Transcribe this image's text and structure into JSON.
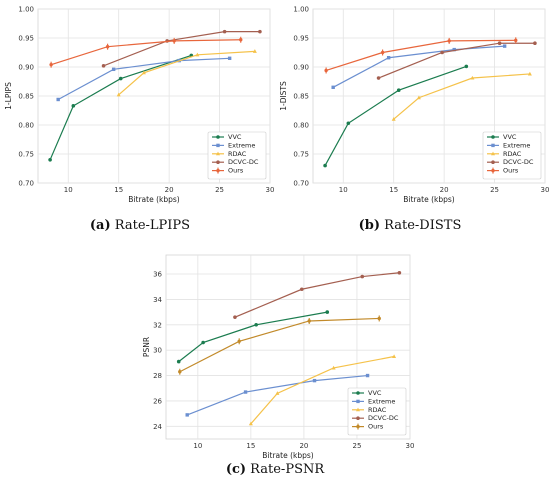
{
  "series_colors": {
    "VVC": "#1b7c4f",
    "Extreme": "#6b8fd0",
    "RDAC": "#f5c24a",
    "DCVC-DC": "#a45f50",
    "Ours": "#e8663c"
  },
  "ours_colors_psnr": "#c28a2a",
  "captions": {
    "lpips_letter": "(a)",
    "lpips_text": " Rate-LPIPS",
    "dists_letter": "(b)",
    "dists_text": " Rate-DISTS",
    "psnr_letter": "(c)",
    "psnr_text": " Rate-PSNR"
  },
  "chart_data": [
    {
      "id": "lpips",
      "type": "line",
      "xlabel": "Bitrate (kbps)",
      "ylabel": "1-LPIPS",
      "xlim": [
        7,
        30
      ],
      "ylim": [
        0.7,
        1.0
      ],
      "xticks": [
        10,
        15,
        20,
        25,
        30
      ],
      "yticks": [
        0.7,
        0.75,
        0.8,
        0.85,
        0.9,
        0.95,
        1.0
      ],
      "ytick_labels": [
        "0.70",
        "0.75",
        "0.80",
        "0.85",
        "0.90",
        "0.95",
        "1.00"
      ],
      "grid": true,
      "legend": "lower-right",
      "series": [
        {
          "name": "VVC",
          "x": [
            8.2,
            10.5,
            15.2,
            22.2
          ],
          "y": [
            0.74,
            0.833,
            0.88,
            0.92
          ]
        },
        {
          "name": "Extreme",
          "x": [
            9.0,
            14.5,
            21.0,
            26.0
          ],
          "y": [
            0.844,
            0.896,
            0.911,
            0.915
          ]
        },
        {
          "name": "RDAC",
          "x": [
            15.0,
            17.5,
            22.8,
            28.5
          ],
          "y": [
            0.852,
            0.89,
            0.921,
            0.927
          ]
        },
        {
          "name": "DCVC-DC",
          "x": [
            13.5,
            19.8,
            25.5,
            29.0
          ],
          "y": [
            0.902,
            0.945,
            0.961,
            0.961
          ]
        },
        {
          "name": "Ours",
          "x": [
            8.3,
            13.9,
            20.5,
            27.1
          ],
          "y": [
            0.904,
            0.935,
            0.945,
            0.947
          ]
        }
      ]
    },
    {
      "id": "dists",
      "type": "line",
      "xlabel": "Bitrate (kbps)",
      "ylabel": "1-DISTS",
      "xlim": [
        7,
        30
      ],
      "ylim": [
        0.7,
        1.0
      ],
      "xticks": [
        10,
        15,
        20,
        25,
        30
      ],
      "yticks": [
        0.7,
        0.75,
        0.8,
        0.85,
        0.9,
        0.95,
        1.0
      ],
      "ytick_labels": [
        "0.70",
        "0.75",
        "0.80",
        "0.85",
        "0.90",
        "0.95",
        "1.00"
      ],
      "grid": true,
      "legend": "lower-right",
      "series": [
        {
          "name": "VVC",
          "x": [
            8.2,
            10.5,
            15.5,
            22.2
          ],
          "y": [
            0.73,
            0.803,
            0.86,
            0.901
          ]
        },
        {
          "name": "Extreme",
          "x": [
            9.0,
            14.5,
            21.0,
            26.0
          ],
          "y": [
            0.865,
            0.916,
            0.93,
            0.936
          ]
        },
        {
          "name": "RDAC",
          "x": [
            15.0,
            17.5,
            22.8,
            28.5
          ],
          "y": [
            0.81,
            0.847,
            0.881,
            0.888
          ]
        },
        {
          "name": "DCVC-DC",
          "x": [
            13.5,
            19.8,
            25.5,
            29.0
          ],
          "y": [
            0.881,
            0.925,
            0.941,
            0.941
          ]
        },
        {
          "name": "Ours",
          "x": [
            8.3,
            13.9,
            20.5,
            27.1
          ],
          "y": [
            0.894,
            0.925,
            0.945,
            0.946
          ]
        }
      ]
    },
    {
      "id": "psnr",
      "type": "line",
      "xlabel": "Bitrate (kbps)",
      "ylabel": "PSNR",
      "xlim": [
        7,
        30
      ],
      "ylim": [
        23,
        37.5
      ],
      "xticks": [
        10,
        15,
        20,
        25,
        30
      ],
      "yticks": [
        24,
        26,
        28,
        30,
        32,
        34,
        36
      ],
      "ytick_labels": [
        "24",
        "26",
        "28",
        "30",
        "32",
        "34",
        "36"
      ],
      "grid": true,
      "legend": "lower-right",
      "series": [
        {
          "name": "VVC",
          "x": [
            8.2,
            10.5,
            15.5,
            22.2
          ],
          "y": [
            29.1,
            30.6,
            32.0,
            33.0
          ]
        },
        {
          "name": "Extreme",
          "x": [
            9.0,
            14.5,
            21.0,
            26.0
          ],
          "y": [
            24.9,
            26.7,
            27.6,
            28.0
          ]
        },
        {
          "name": "RDAC",
          "x": [
            15.0,
            17.5,
            22.8,
            28.5
          ],
          "y": [
            24.2,
            26.6,
            28.6,
            29.5
          ]
        },
        {
          "name": "DCVC-DC",
          "x": [
            13.5,
            19.8,
            25.5,
            29.0
          ],
          "y": [
            32.6,
            34.8,
            35.8,
            36.1
          ]
        },
        {
          "name": "Ours",
          "x": [
            8.3,
            13.9,
            20.5,
            27.1
          ],
          "y": [
            28.3,
            30.7,
            32.3,
            32.5
          ]
        }
      ]
    }
  ]
}
